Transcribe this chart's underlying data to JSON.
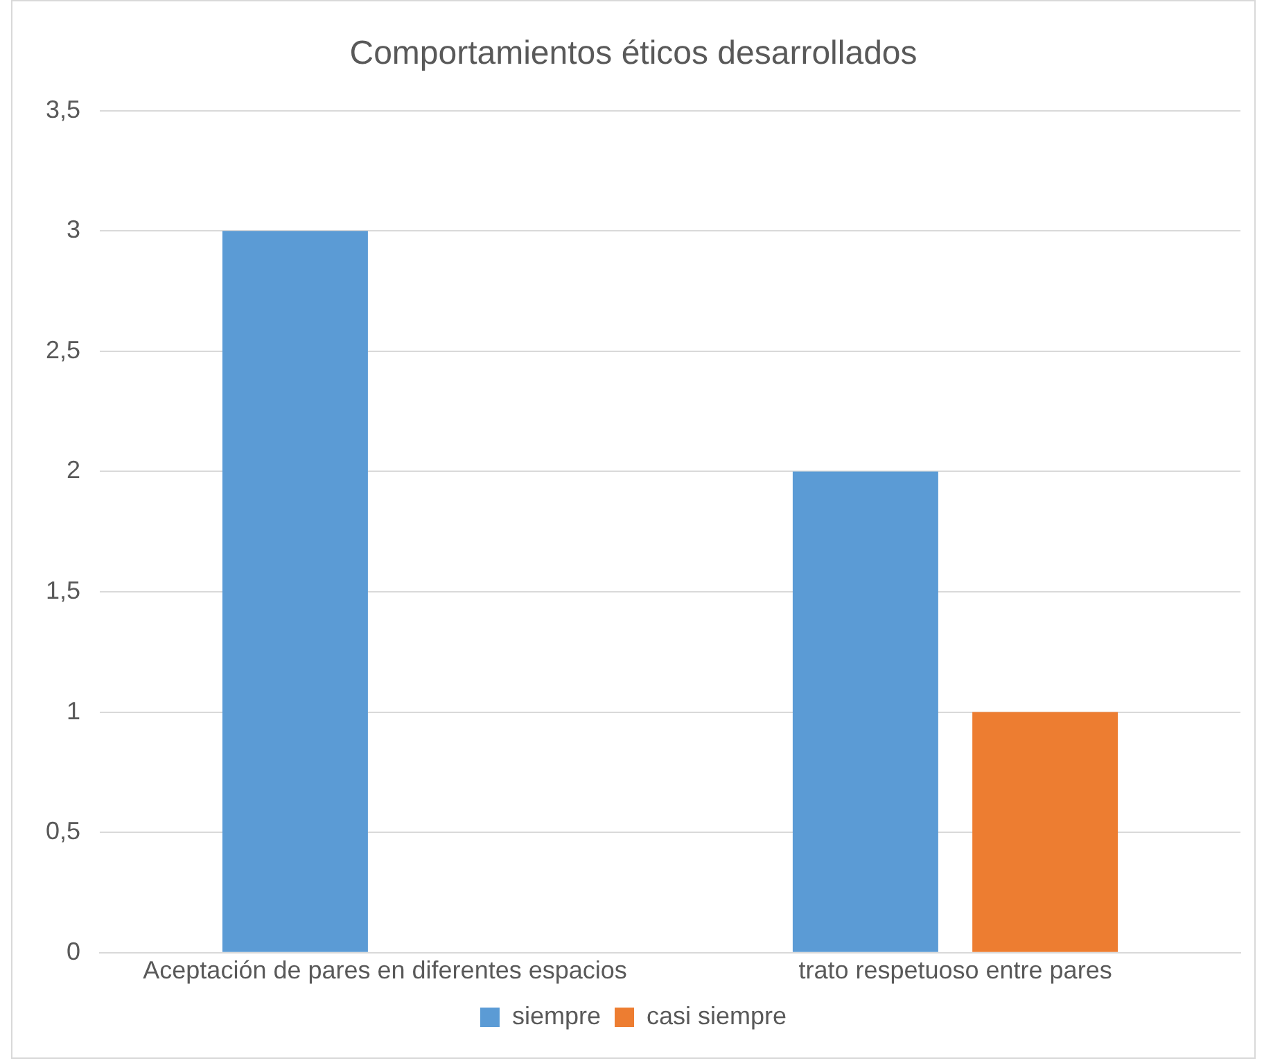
{
  "chart_data": {
    "type": "bar",
    "title": "Comportamientos éticos desarrollados",
    "categories": [
      "Aceptación de pares en diferentes espacios",
      "trato respetuoso entre pares"
    ],
    "series": [
      {
        "name": "siempre",
        "color": "#5b9bd5",
        "values": [
          3,
          2
        ]
      },
      {
        "name": "casi siempre",
        "color": "#ed7d31",
        "values": [
          null,
          1
        ]
      }
    ],
    "ylim": [
      0,
      3.5
    ],
    "yticks": [
      0,
      {
        "value": 0.5,
        "label": "0,5"
      },
      1,
      {
        "value": 1.5,
        "label": "1,5"
      },
      2,
      {
        "value": 2.5,
        "label": "2,5"
      },
      3,
      {
        "value": 3.5,
        "label": "3,5"
      }
    ],
    "grid": "y",
    "legend": "bottom"
  }
}
